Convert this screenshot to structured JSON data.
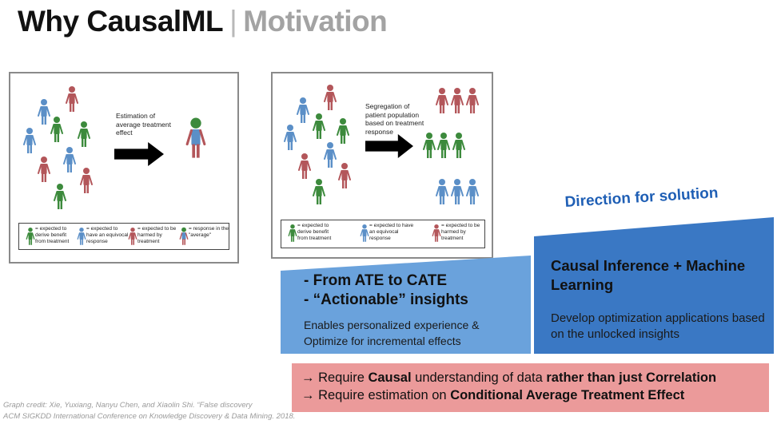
{
  "header": {
    "title": "Why CausalML",
    "separator": "|",
    "subtitle": "Motivation"
  },
  "figure_left": {
    "caption": [
      "Estimation of",
      "average treatment",
      "effect"
    ],
    "legend": [
      {
        "icon": "person-green-icon",
        "color": "#3c8a3c",
        "lines": [
          "= expected to",
          "derive benefit",
          "from treatment"
        ]
      },
      {
        "icon": "person-blue-icon",
        "color": "#5b8fc7",
        "lines": [
          "= expected to",
          "have an equivocal",
          "response"
        ]
      },
      {
        "icon": "person-red-icon",
        "color": "#b3565a",
        "lines": [
          "= expected to be",
          "harmed by",
          "treatment"
        ]
      },
      {
        "icon": "person-average-icon",
        "color": "#5b8fc7",
        "lines": [
          "= response in the",
          "\"average\""
        ]
      }
    ]
  },
  "figure_right": {
    "caption": [
      "Segregation of",
      "patient population",
      "based on treatment",
      "response"
    ],
    "legend": [
      {
        "icon": "person-green-icon",
        "color": "#3c8a3c",
        "lines": [
          "= expected to",
          "derive benefit",
          "from treatment"
        ]
      },
      {
        "icon": "person-blue-icon",
        "color": "#5b8fc7",
        "lines": [
          "= expected to have",
          "an equivocal",
          "response"
        ]
      },
      {
        "icon": "person-red-icon",
        "color": "#b3565a",
        "lines": [
          "= expected to be",
          "harmed by",
          "treatment"
        ]
      }
    ]
  },
  "direction": {
    "title": "Direction for solution",
    "left": {
      "headline_1": "- From ATE to CATE",
      "headline_2": "- “Actionable” insights",
      "body_1": "Enables personalized experience &",
      "body_2": "Optimize for incremental effects"
    },
    "right": {
      "headline": "Causal Inference + Machine Learning",
      "body": "Develop optimization applications based on the unlocked insights"
    }
  },
  "requirements": {
    "line1_prefix": "→ Require ",
    "line1_bold1": "Causal",
    "line1_mid": " understanding of data ",
    "line1_bold2": "rather than just Correlation",
    "line2_prefix": "→ Require estimation on ",
    "line2_bold": "Conditional Average Treatment Effect"
  },
  "credit": {
    "line1": "Graph credit: Xie, Yuxiang, Nanyu Chen, and Xiaolin Shi. “False discovery",
    "line2": "ACM SIGKDD International Conference on Knowledge Discovery & Data Mining. 2018."
  },
  "colors": {
    "green": "#3c8a3c",
    "blue": "#5b8fc7",
    "red": "#b3565a",
    "light_blue": "#6aa2dc",
    "dark_blue": "#3a78c4",
    "pink": "#eb9a9a",
    "title_blue": "#1f5fb5"
  }
}
